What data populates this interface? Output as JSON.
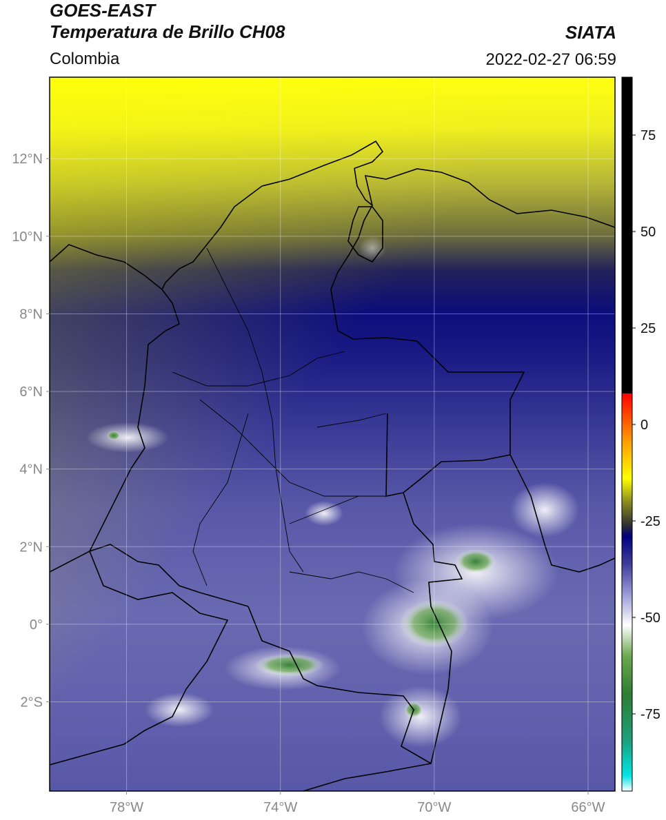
{
  "header": {
    "satellite": "GOES-EAST",
    "product": "Temperatura de Brillo CH08",
    "region": "Colombia",
    "source": "SIATA",
    "datetime": "2022-02-27 06:59"
  },
  "map": {
    "extent": {
      "lon_min": -80,
      "lon_max": -65.3,
      "lat_min": -4.3,
      "lat_max": 14.1
    },
    "lon_ticks": [
      {
        "value": -78,
        "label": "78°W"
      },
      {
        "value": -74,
        "label": "74°W"
      },
      {
        "value": -70,
        "label": "70°W"
      },
      {
        "value": -66,
        "label": "66°W"
      }
    ],
    "lat_ticks": [
      {
        "value": 12,
        "label": "12°N"
      },
      {
        "value": 10,
        "label": "10°N"
      },
      {
        "value": 8,
        "label": "8°N"
      },
      {
        "value": 6,
        "label": "6°N"
      },
      {
        "value": 4,
        "label": "4°N"
      },
      {
        "value": 2,
        "label": "2°N"
      },
      {
        "value": 0,
        "label": "0°"
      },
      {
        "value": -2,
        "label": "2°S"
      }
    ],
    "grid": true
  },
  "colorbar": {
    "min": -95,
    "max": 90,
    "ticks": [
      {
        "value": 75,
        "label": "75"
      },
      {
        "value": 50,
        "label": "50"
      },
      {
        "value": 25,
        "label": "25"
      },
      {
        "value": 0,
        "label": "0"
      },
      {
        "value": -25,
        "label": "-25"
      },
      {
        "value": -50,
        "label": "-50"
      },
      {
        "value": -75,
        "label": "-75"
      }
    ],
    "stops": [
      {
        "value": -95,
        "color": "#ffffff"
      },
      {
        "value": -91,
        "color": "#00e5e5"
      },
      {
        "value": -82,
        "color": "#1ca07e"
      },
      {
        "value": -70,
        "color": "#2e7d32"
      },
      {
        "value": -60,
        "color": "#6aa84f"
      },
      {
        "value": -52,
        "color": "#ffffff"
      },
      {
        "value": -44,
        "color": "#9a9ad8"
      },
      {
        "value": -36,
        "color": "#3c3c98"
      },
      {
        "value": -29,
        "color": "#000080"
      },
      {
        "value": -26,
        "color": "#303030"
      },
      {
        "value": -20,
        "color": "#8c8c20"
      },
      {
        "value": -14,
        "color": "#ffff00"
      },
      {
        "value": -4,
        "color": "#ff9900"
      },
      {
        "value": 8,
        "color": "#ff0000"
      },
      {
        "value": 8.1,
        "color": "#000000"
      },
      {
        "value": 90,
        "color": "#000000"
      }
    ]
  }
}
